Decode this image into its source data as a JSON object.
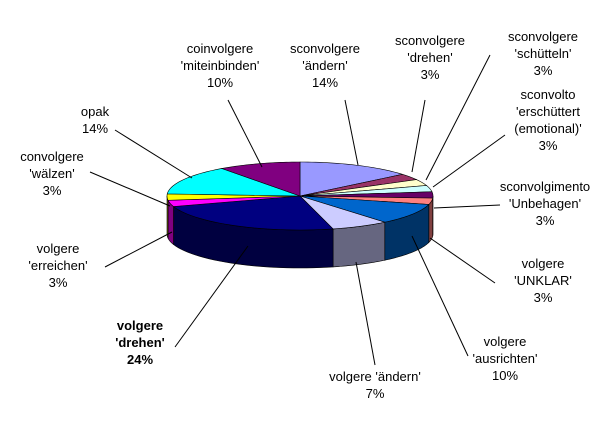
{
  "chart_data": {
    "type": "pie",
    "categories": [
      "sconvolgere\n'ändern'",
      "sconvolgere\n'drehen'",
      "sconvolgere\n'schütteln'",
      "sconvolto\n'erschüttert\n(emotional)'",
      "sconvolgimento\n'Unbehagen'",
      "volgere\n'UNKLAR'",
      "volgere\n'ausrichten'",
      "volgere 'ändern'",
      "volgere\n'drehen'",
      "volgere\n'erreichen'",
      "convolgere\n'wälzen'",
      "opak",
      "coinvolgere\n'miteinbinden'"
    ],
    "values": [
      14,
      3,
      3,
      3,
      3,
      3,
      10,
      7,
      24,
      3,
      3,
      14,
      10
    ],
    "value_labels": [
      "14%",
      "3%",
      "3%",
      "3%",
      "3%",
      "3%",
      "10%",
      "7%",
      "24%",
      "3%",
      "3%",
      "14%",
      "10%"
    ],
    "colors": [
      "#9999ff",
      "#993366",
      "#ffffcc",
      "#ccffff",
      "#660066",
      "#ff8080",
      "#0066cc",
      "#ccccff",
      "#000080",
      "#ff00ff",
      "#ffff00",
      "#00ffff",
      "#800080"
    ]
  }
}
